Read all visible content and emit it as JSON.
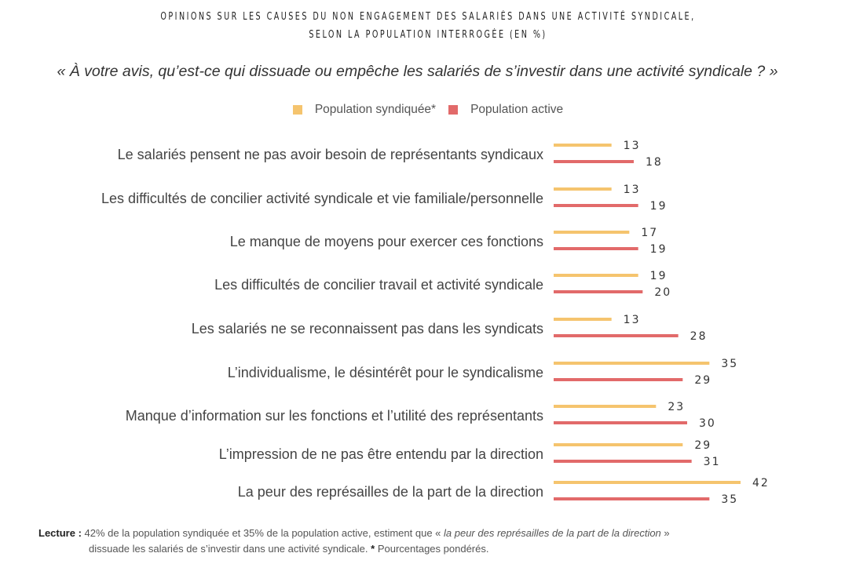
{
  "chart_data": {
    "type": "bar",
    "orientation": "horizontal",
    "title_lines": [
      "OPINIONS SUR LES CAUSES DU NON ENGAGEMENT DES SALARIÉS DANS UNE ACTIVITÉ SYNDICALE,",
      "SELON LA POPULATION INTERROGÉE (EN %)"
    ],
    "subtitle": "« À votre avis, qu’est-ce qui dissuade ou empêche les salariés de s’investir dans une activité syndicale ? »",
    "legend_placement": "top-center",
    "categories": [
      "Le salariés pensent ne pas avoir besoin de représentants syndicaux",
      "Les difficultés de concilier activité syndicale et vie familiale/personnelle",
      "Le manque de moyens pour exercer ces fonctions",
      "Les difficultés de concilier travail et activité syndicale",
      "Les salariés ne se reconnaissent pas dans les syndicats",
      "L’individualisme, le désintérêt pour le syndicalisme",
      "Manque d’information sur les fonctions et l’utilité des représentants",
      "L’impression de ne pas être entendu par la direction",
      "La peur des représailles de la part de la direction"
    ],
    "series": [
      {
        "name": "Population syndiquée*",
        "color": "#f5c46e",
        "values": [
          13,
          13,
          17,
          19,
          13,
          35,
          23,
          29,
          42
        ]
      },
      {
        "name": "Population active",
        "color": "#e26a6a",
        "values": [
          18,
          19,
          19,
          20,
          28,
          29,
          30,
          31,
          35
        ]
      }
    ],
    "xlim": [
      0,
      42
    ],
    "grid": false
  },
  "footer": {
    "label": "Lecture :",
    "text_1": " 42% de la population syndiquée et 35% de la population active, estiment que « ",
    "text_italic": "la peur des représailles de la part de la direction",
    "text_2": " »",
    "line_2": "dissuade les salariés de s’investir dans une activité syndicale. ",
    "star": "*",
    "note": " Pourcentages pondérés."
  }
}
